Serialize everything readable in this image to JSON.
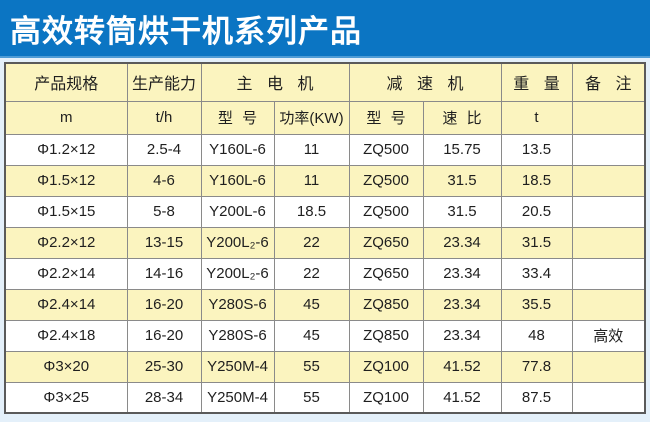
{
  "banner": {
    "title": "高效转筒烘干机系列产品"
  },
  "table": {
    "header_groups": {
      "spec": "产品规格",
      "capacity": "生产能力",
      "main_motor": "主 电 机",
      "reducer": "减 速 机",
      "weight": "重 量",
      "note": "备 注"
    },
    "header_units": {
      "spec_unit": "m",
      "capacity_unit": "t/h",
      "motor_model": "型 号",
      "motor_power": "功率(KW)",
      "reducer_model": "型 号",
      "reducer_ratio": "速 比",
      "weight_unit": "t",
      "note_unit": ""
    },
    "rows": [
      {
        "spec": "Φ1.2×12",
        "capacity": "2.5-4",
        "motor_model": "Y160L-6",
        "motor_power": "11",
        "reducer_model": "ZQ500",
        "reducer_ratio": "15.75",
        "weight": "13.5",
        "note": ""
      },
      {
        "spec": "Φ1.5×12",
        "capacity": "4-6",
        "motor_model": "Y160L-6",
        "motor_power": "11",
        "reducer_model": "ZQ500",
        "reducer_ratio": "31.5",
        "weight": "18.5",
        "note": ""
      },
      {
        "spec": "Φ1.5×15",
        "capacity": "5-8",
        "motor_model": "Y200L-6",
        "motor_power": "18.5",
        "reducer_model": "ZQ500",
        "reducer_ratio": "31.5",
        "weight": "20.5",
        "note": ""
      },
      {
        "spec": "Φ2.2×12",
        "capacity": "13-15",
        "motor_model": "Y200L₂-6",
        "motor_power": "22",
        "reducer_model": "ZQ650",
        "reducer_ratio": "23.34",
        "weight": "31.5",
        "note": ""
      },
      {
        "spec": "Φ2.2×14",
        "capacity": "14-16",
        "motor_model": "Y200L₂-6",
        "motor_power": "22",
        "reducer_model": "ZQ650",
        "reducer_ratio": "23.34",
        "weight": "33.4",
        "note": ""
      },
      {
        "spec": "Φ2.4×14",
        "capacity": "16-20",
        "motor_model": "Y280S-6",
        "motor_power": "45",
        "reducer_model": "ZQ850",
        "reducer_ratio": "23.34",
        "weight": "35.5",
        "note": ""
      },
      {
        "spec": "Φ2.4×18",
        "capacity": "16-20",
        "motor_model": "Y280S-6",
        "motor_power": "45",
        "reducer_model": "ZQ850",
        "reducer_ratio": "23.34",
        "weight": "48",
        "note": "高效"
      },
      {
        "spec": "Φ3×20",
        "capacity": "25-30",
        "motor_model": "Y250M-4",
        "motor_power": "55",
        "reducer_model": "ZQ100",
        "reducer_ratio": "41.52",
        "weight": "77.8",
        "note": ""
      },
      {
        "spec": "Φ3×25",
        "capacity": "28-34",
        "motor_model": "Y250M-4",
        "motor_power": "55",
        "reducer_model": "ZQ100",
        "reducer_ratio": "41.52",
        "weight": "87.5",
        "note": ""
      }
    ]
  },
  "colors": {
    "banner_bg": "#0b75c3",
    "banner_edge": "#4e9cd6",
    "banner_text": "#ffffff",
    "row_stripe": "#fbf4bf",
    "row_plain": "#ffffff",
    "grid_line": "#8a8a8a",
    "table_border": "#5a5a5a",
    "page_bg": "#e4f0fa"
  }
}
